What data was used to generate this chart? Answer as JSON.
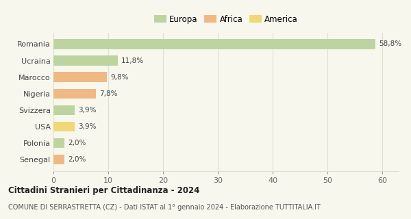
{
  "categories": [
    "Romania",
    "Ucraina",
    "Marocco",
    "Nigeria",
    "Svizzera",
    "USA",
    "Polonia",
    "Senegal"
  ],
  "values": [
    58.8,
    11.8,
    9.8,
    7.8,
    3.9,
    3.9,
    2.0,
    2.0
  ],
  "labels": [
    "58,8%",
    "11,8%",
    "9,8%",
    "7,8%",
    "3,9%",
    "3,9%",
    "2,0%",
    "2,0%"
  ],
  "colors": [
    "#bdd4a0",
    "#bdd4a0",
    "#f0b882",
    "#f0b882",
    "#bdd4a0",
    "#f0d878",
    "#bdd4a0",
    "#f0b882"
  ],
  "legend": [
    {
      "label": "Europa",
      "color": "#bdd4a0"
    },
    {
      "label": "Africa",
      "color": "#f0b882"
    },
    {
      "label": "America",
      "color": "#f0d878"
    }
  ],
  "xlim": [
    0,
    63
  ],
  "xticks": [
    0,
    10,
    20,
    30,
    40,
    50,
    60
  ],
  "title": "Cittadini Stranieri per Cittadinanza - 2024",
  "subtitle": "COMUNE DI SERRASTRETTA (CZ) - Dati ISTAT al 1° gennaio 2024 - Elaborazione TUTTITALIA.IT",
  "background_color": "#f7f7ee",
  "grid_color": "#e0e0d0",
  "bar_height": 0.6
}
